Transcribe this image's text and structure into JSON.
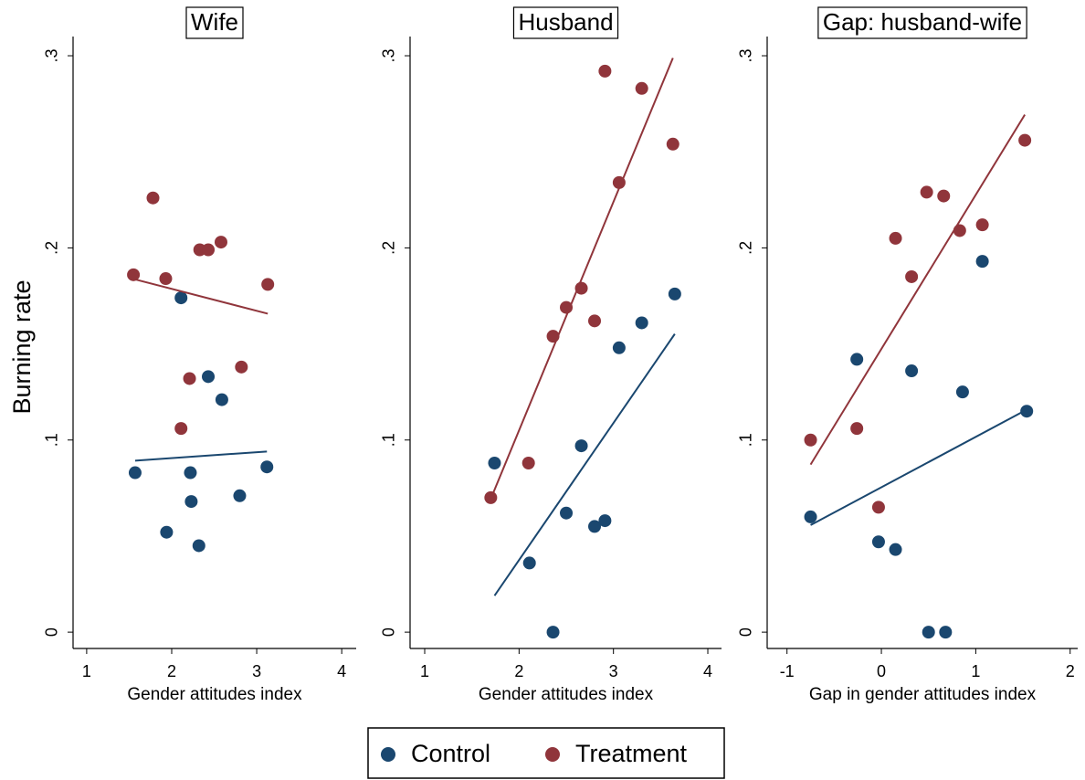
{
  "chart_data": [
    {
      "type": "scatter",
      "title": "Wife",
      "xlabel": "Gender attitudes index",
      "ylabel": "Burning rate",
      "fit": true,
      "xlim": [
        0.84,
        4.17
      ],
      "ylim": [
        -0.0085,
        0.31
      ],
      "xticks": [
        1,
        2,
        3,
        4
      ],
      "yticks": [
        0,
        {
          "value": 0.1,
          "label": ".1"
        },
        {
          "value": 0.2,
          "label": ".2"
        },
        {
          "value": 0.3,
          "label": ".3"
        }
      ],
      "series": [
        {
          "name": "Control",
          "color": "#1a476f",
          "x": [
            1.57,
            1.94,
            2.23,
            2.11,
            2.43,
            2.22,
            2.32,
            2.59,
            2.8,
            3.12
          ],
          "values": [
            0.083,
            0.052,
            0.068,
            0.174,
            0.133,
            0.083,
            0.045,
            0.121,
            0.071,
            0.086
          ]
        },
        {
          "name": "Treatment",
          "color": "#90353b",
          "x": [
            1.55,
            1.78,
            1.93,
            2.33,
            2.43,
            2.58,
            2.21,
            2.11,
            2.82,
            3.13
          ],
          "values": [
            0.186,
            0.226,
            0.184,
            0.199,
            0.199,
            0.203,
            0.132,
            0.106,
            0.138,
            0.181
          ]
        }
      ]
    },
    {
      "type": "scatter",
      "title": "Husband",
      "xlabel": "Gender attitudes index",
      "fit": true,
      "xlim": [
        0.845,
        4.145
      ],
      "ylim": [
        -0.0085,
        0.31
      ],
      "xticks": [
        1,
        2,
        3,
        4
      ],
      "yticks": [
        0,
        {
          "value": 0.1,
          "label": ".1"
        },
        {
          "value": 0.2,
          "label": ".2"
        },
        {
          "value": 0.3,
          "label": ".3"
        }
      ],
      "series": [
        {
          "name": "Control",
          "color": "#1a476f",
          "x": [
            1.74,
            2.11,
            2.36,
            2.5,
            2.66,
            2.8,
            2.91,
            3.06,
            3.3,
            3.65
          ],
          "values": [
            0.088,
            0.036,
            0,
            0.062,
            0.097,
            0.055,
            0.058,
            0.148,
            0.161,
            0.176
          ]
        },
        {
          "name": "Treatment",
          "color": "#90353b",
          "x": [
            1.7,
            2.1,
            2.36,
            2.5,
            2.66,
            2.8,
            2.91,
            3.06,
            3.3,
            3.63
          ],
          "values": [
            0.07,
            0.088,
            0.154,
            0.169,
            0.179,
            0.162,
            0.292,
            0.234,
            0.283,
            0.254
          ]
        }
      ]
    },
    {
      "type": "scatter",
      "title": "Gap: husband-wife",
      "xlabel": "Gap in gender attitudes index",
      "fit": true,
      "xlim": [
        -1.21,
        2.08
      ],
      "ylim": [
        -0.0085,
        0.31
      ],
      "xticks": [
        -1,
        0,
        1,
        2
      ],
      "yticks": [
        0,
        {
          "value": 0.1,
          "label": ".1"
        },
        {
          "value": 0.2,
          "label": ".2"
        },
        {
          "value": 0.3,
          "label": ".3"
        }
      ],
      "series": [
        {
          "name": "Control",
          "color": "#1a476f",
          "x": [
            -0.75,
            -0.26,
            -0.03,
            0.15,
            0.32,
            0.5,
            0.68,
            0.86,
            1.07,
            1.54
          ],
          "values": [
            0.06,
            0.142,
            0.047,
            0.043,
            0.136,
            0,
            0,
            0.125,
            0.193,
            0.115
          ]
        },
        {
          "name": "Treatment",
          "color": "#90353b",
          "x": [
            -0.75,
            -0.26,
            -0.03,
            0.15,
            0.32,
            0.48,
            0.66,
            0.83,
            1.07,
            1.52
          ],
          "values": [
            0.1,
            0.106,
            0.065,
            0.205,
            0.185,
            0.229,
            0.227,
            0.209,
            0.212,
            0.256
          ]
        }
      ]
    }
  ]
}
